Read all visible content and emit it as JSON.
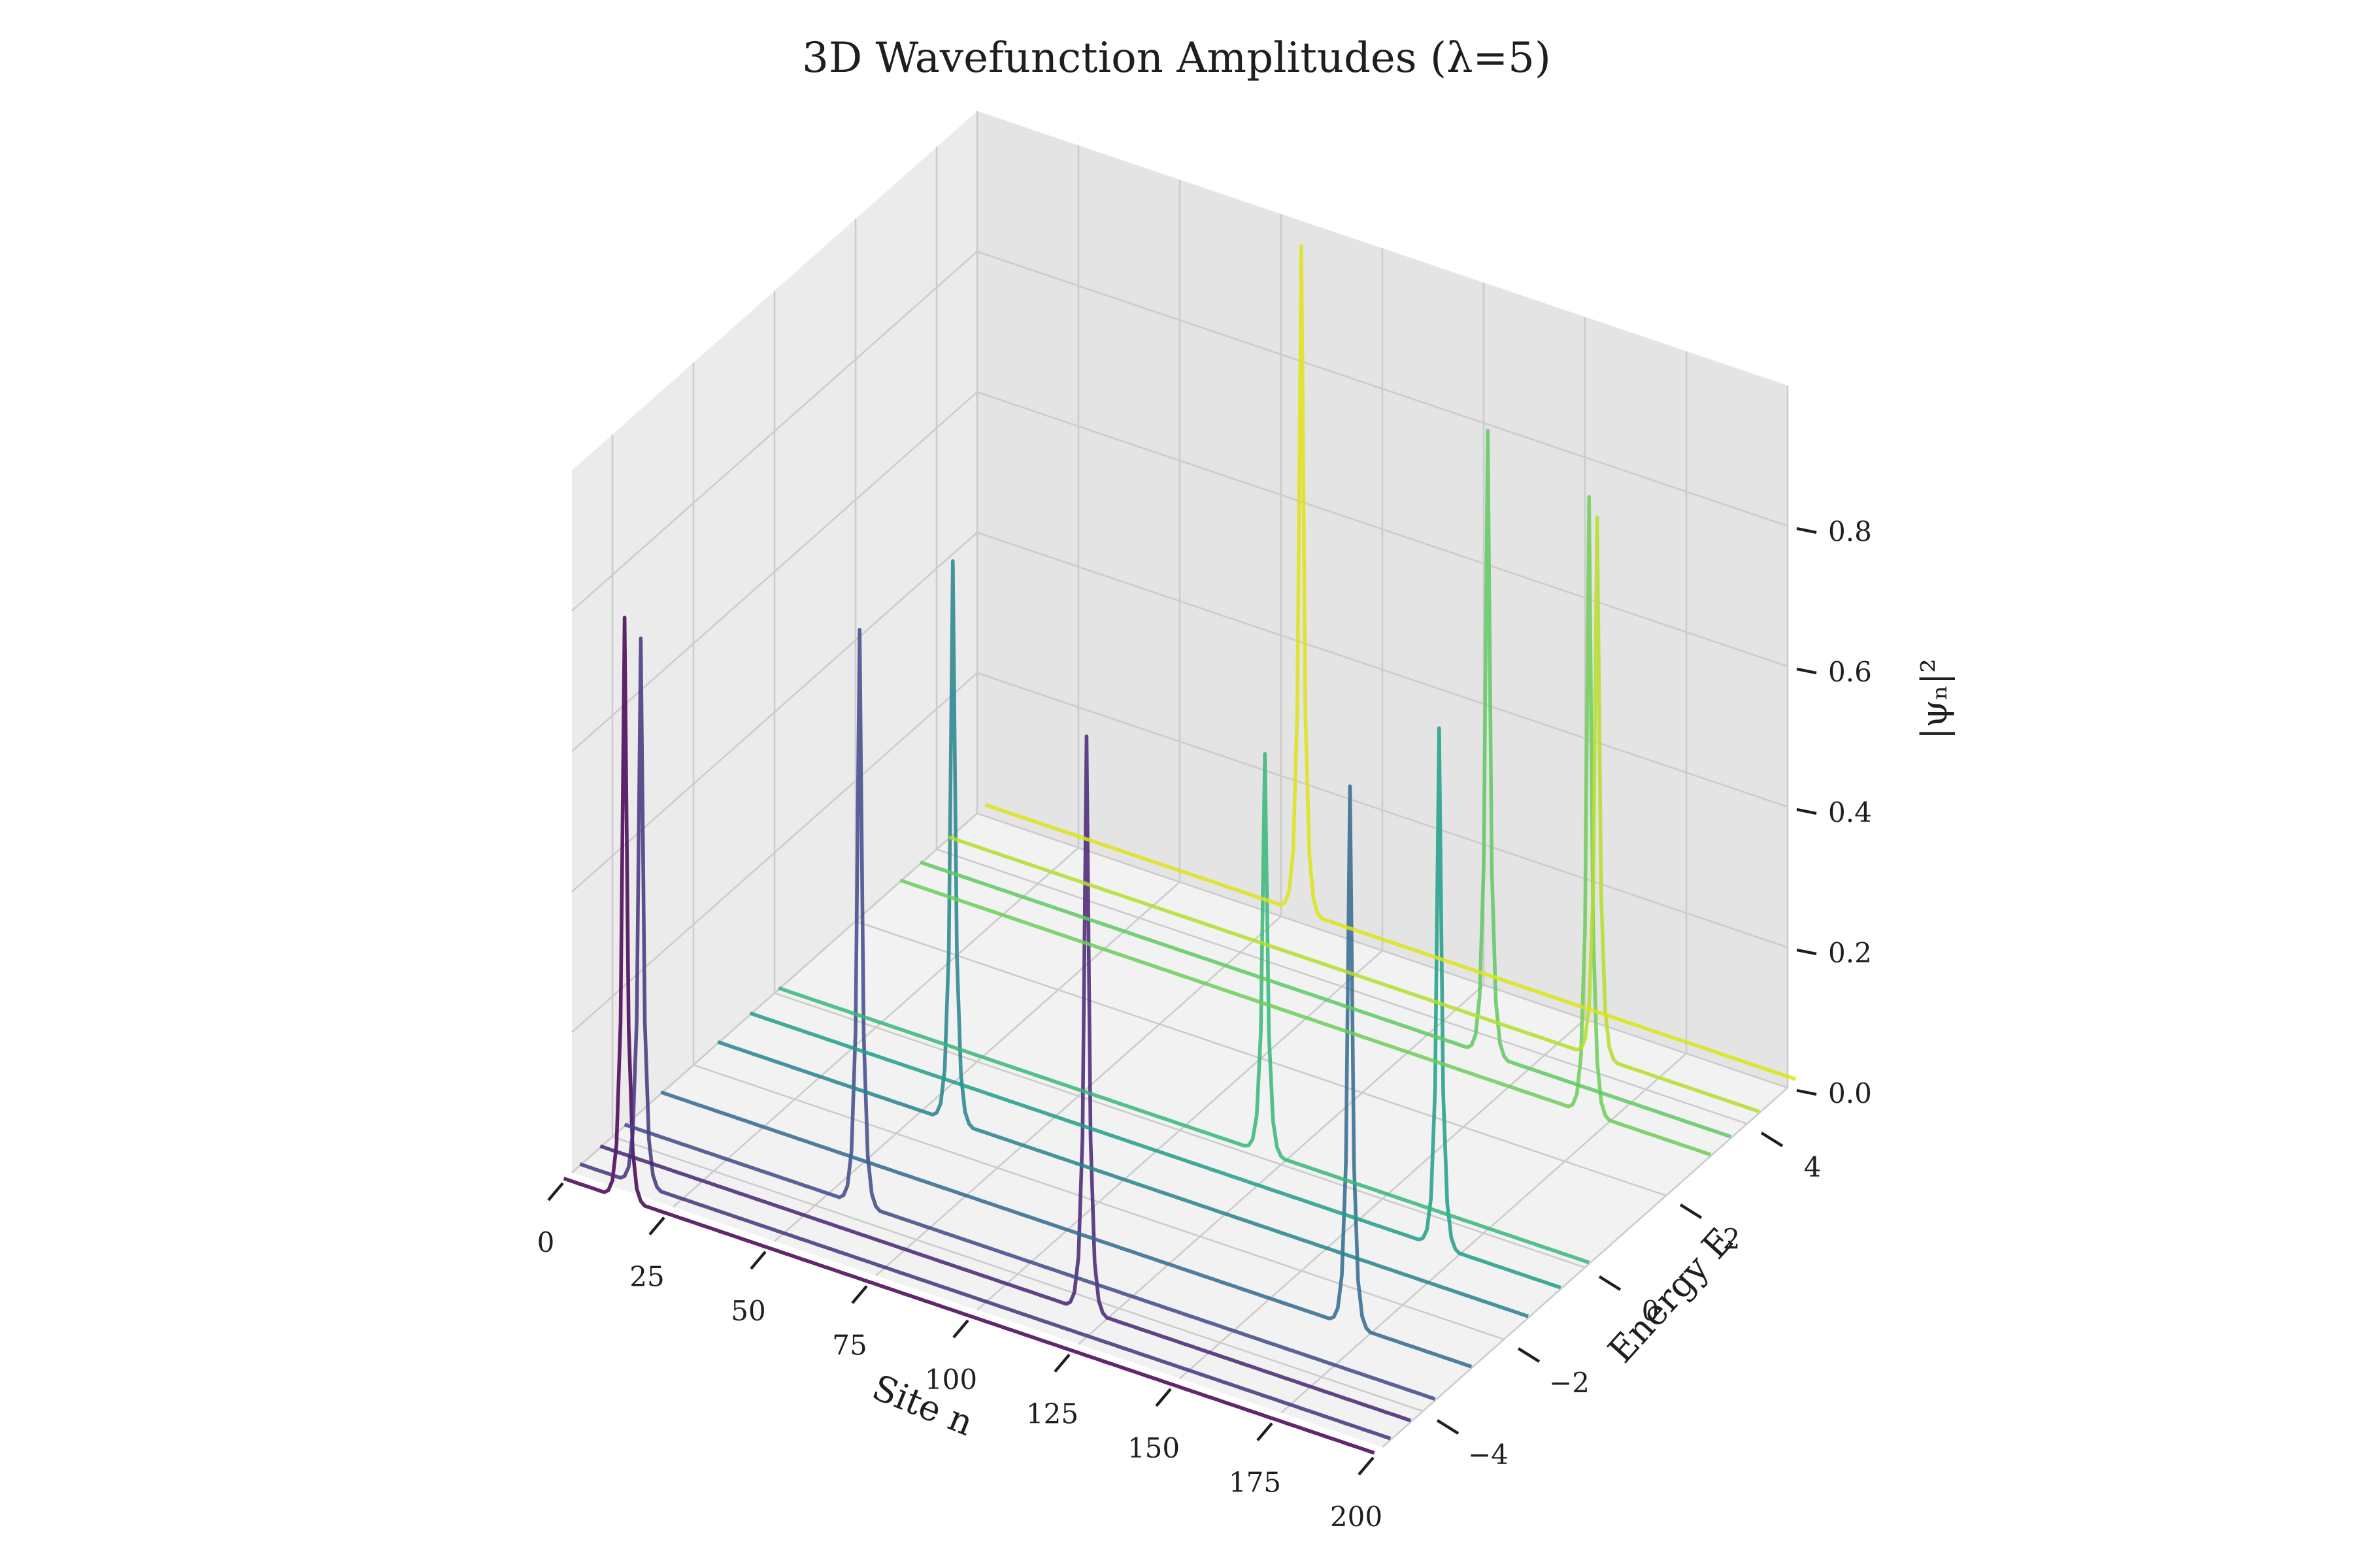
{
  "chart_data": {
    "type": "line",
    "title": "3D Wavefunction Amplitudes (λ=5)",
    "xlabel": "Site n",
    "ylabel": "Energy E",
    "zlabel": "|ψₙ|²",
    "xlim": [
      0,
      200
    ],
    "ylim": [
      -5,
      5
    ],
    "zlim": [
      0,
      1
    ],
    "xticks": [
      0,
      25,
      50,
      75,
      100,
      125,
      150,
      175,
      200
    ],
    "yticks": [
      -4,
      -2,
      0,
      2,
      4
    ],
    "zticks": [
      0.0,
      0.2,
      0.4,
      0.6,
      0.8
    ],
    "xtick_labels": [
      "0",
      "25",
      "50",
      "75",
      "100",
      "125",
      "150",
      "175",
      "200"
    ],
    "ytick_labels": [
      "−4",
      "−2",
      "0",
      "2",
      "4"
    ],
    "ztick_labels": [
      "0.0",
      "0.2",
      "0.4",
      "0.6",
      "0.8"
    ],
    "grid": true,
    "colormap": "viridis",
    "series": [
      {
        "energy": -5.2,
        "peak_site": 15,
        "peak_amplitude": 0.83,
        "color": "#440154"
      },
      {
        "energy": -4.8,
        "peak_site": 15,
        "peak_amplitude": 0.78,
        "color": "#46327e"
      },
      {
        "energy": -4.3,
        "peak_site": 120,
        "peak_amplitude": 0.82,
        "color": "#482374"
      },
      {
        "energy": -3.7,
        "peak_site": 58,
        "peak_amplitude": 0.82,
        "color": "#3e4989"
      },
      {
        "energy": -2.8,
        "peak_site": 170,
        "peak_amplitude": 0.77,
        "color": "#31688e"
      },
      {
        "energy": -1.4,
        "peak_site": 58,
        "peak_amplitude": 0.8,
        "color": "#26828e"
      },
      {
        "energy": -0.6,
        "peak_site": 170,
        "peak_amplitude": 0.74,
        "color": "#1f9e89"
      },
      {
        "energy": 0.1,
        "peak_site": 120,
        "peak_amplitude": 0.57,
        "color": "#35b779"
      },
      {
        "energy": 3.1,
        "peak_site": 170,
        "peak_amplitude": 0.88,
        "color": "#6ece58"
      },
      {
        "energy": 3.6,
        "peak_site": 140,
        "peak_amplitude": 0.89,
        "color": "#5ec962"
      },
      {
        "energy": 4.3,
        "peak_site": 160,
        "peak_amplitude": 0.77,
        "color": "#b5de2b"
      },
      {
        "energy": 5.2,
        "peak_site": 78,
        "peak_amplitude": 0.95,
        "color": "#dde318"
      }
    ]
  }
}
